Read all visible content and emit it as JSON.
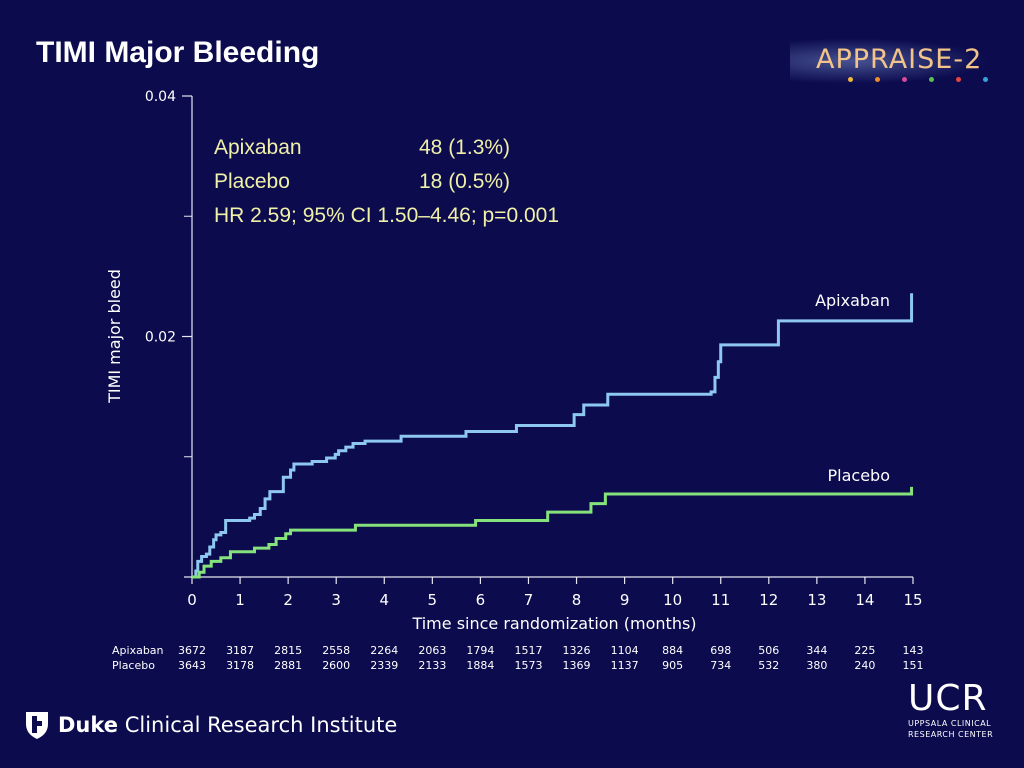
{
  "slide": {
    "title": "TIMI Major Bleeding"
  },
  "logo": {
    "text": "APPRAISE-2",
    "dot_colors": [
      "#f2b73c",
      "#f28c28",
      "#d84a9a",
      "#5bbf4b",
      "#e3463c",
      "#3aa0d8"
    ]
  },
  "legend": {
    "rows": [
      {
        "label": "Apixaban",
        "value": "48 (1.3%)"
      },
      {
        "label": "Placebo",
        "value": "18 (0.5%)"
      }
    ],
    "hr_text": "HR 2.59; 95% CI 1.50–4.46; p=0.001"
  },
  "chart_data": {
    "type": "line",
    "step": true,
    "title": "TIMI Major Bleeding",
    "xlabel": "Time since randomization (months)",
    "ylabel": "TIMI major bleed",
    "xlim": [
      0,
      15
    ],
    "ylim": [
      0,
      0.04
    ],
    "x_ticks": [
      "0",
      "1",
      "2",
      "3",
      "4",
      "5",
      "6",
      "7",
      "8",
      "9",
      "10",
      "11",
      "12",
      "13",
      "14",
      "15"
    ],
    "y_tick_labels": [
      {
        "value": 0.04,
        "label": "0.04"
      },
      {
        "value": 0.02,
        "label": "0.02"
      }
    ],
    "y_minor_ticks": [
      0.01,
      0.03
    ],
    "series": [
      {
        "name": "Apixaban",
        "color": "#8ec8f0",
        "label_text": "Apixaban",
        "points": [
          [
            0,
            0
          ],
          [
            0.08,
            0.0005
          ],
          [
            0.12,
            0.0013
          ],
          [
            0.2,
            0.0017
          ],
          [
            0.3,
            0.0019
          ],
          [
            0.37,
            0.0025
          ],
          [
            0.45,
            0.0031
          ],
          [
            0.5,
            0.0035
          ],
          [
            0.6,
            0.0037
          ],
          [
            0.7,
            0.0047
          ],
          [
            0.9,
            0.0047
          ],
          [
            1.2,
            0.0049
          ],
          [
            1.3,
            0.0052
          ],
          [
            1.42,
            0.0057
          ],
          [
            1.52,
            0.0065
          ],
          [
            1.62,
            0.0071
          ],
          [
            1.75,
            0.0071
          ],
          [
            1.9,
            0.0083
          ],
          [
            2.05,
            0.0089
          ],
          [
            2.12,
            0.0094
          ],
          [
            2.5,
            0.0096
          ],
          [
            2.8,
            0.0099
          ],
          [
            2.98,
            0.0102
          ],
          [
            3.05,
            0.0105
          ],
          [
            3.2,
            0.0108
          ],
          [
            3.35,
            0.0111
          ],
          [
            3.6,
            0.0113
          ],
          [
            4.35,
            0.0117
          ],
          [
            5.7,
            0.0121
          ],
          [
            6.75,
            0.0126
          ],
          [
            7.95,
            0.0135
          ],
          [
            8.15,
            0.0143
          ],
          [
            8.65,
            0.0152
          ],
          [
            10.8,
            0.0154
          ],
          [
            10.88,
            0.0166
          ],
          [
            10.95,
            0.0179
          ],
          [
            11.0,
            0.0193
          ],
          [
            12.2,
            0.0213
          ],
          [
            14.95,
            0.0213
          ],
          [
            14.97,
            0.0236
          ]
        ],
        "end_x": 15
      },
      {
        "name": "Placebo",
        "color": "#86e27a",
        "label_text": "Placebo",
        "points": [
          [
            0,
            0
          ],
          [
            0.15,
            0.0004
          ],
          [
            0.25,
            0.0009
          ],
          [
            0.4,
            0.0013
          ],
          [
            0.6,
            0.0016
          ],
          [
            0.8,
            0.0021
          ],
          [
            1.3,
            0.0024
          ],
          [
            1.6,
            0.0027
          ],
          [
            1.75,
            0.0032
          ],
          [
            1.95,
            0.0036
          ],
          [
            2.05,
            0.0039
          ],
          [
            3.4,
            0.0043
          ],
          [
            5.9,
            0.0047
          ],
          [
            7.4,
            0.0054
          ],
          [
            8.3,
            0.0061
          ],
          [
            8.6,
            0.0069
          ],
          [
            14.97,
            0.0075
          ]
        ],
        "end_x": 15
      }
    ]
  },
  "risk_table": {
    "rows": [
      {
        "label": "Apixaban",
        "values": [
          "3672",
          "3187",
          "2815",
          "2558",
          "2264",
          "2063",
          "1794",
          "1517",
          "1326",
          "1104",
          "884",
          "698",
          "506",
          "344",
          "225",
          "143"
        ]
      },
      {
        "label": "Placebo",
        "values": [
          "3643",
          "3178",
          "2881",
          "2600",
          "2339",
          "2133",
          "1884",
          "1573",
          "1369",
          "1137",
          "905",
          "734",
          "532",
          "380",
          "240",
          "151"
        ]
      }
    ]
  },
  "footer": {
    "duke_bold": "Duke",
    "duke_rest": "Clinical Research Institute",
    "ucr_big": "UCR",
    "ucr_line1": "UPPSALA CLINICAL",
    "ucr_line2": "RESEARCH CENTER"
  }
}
